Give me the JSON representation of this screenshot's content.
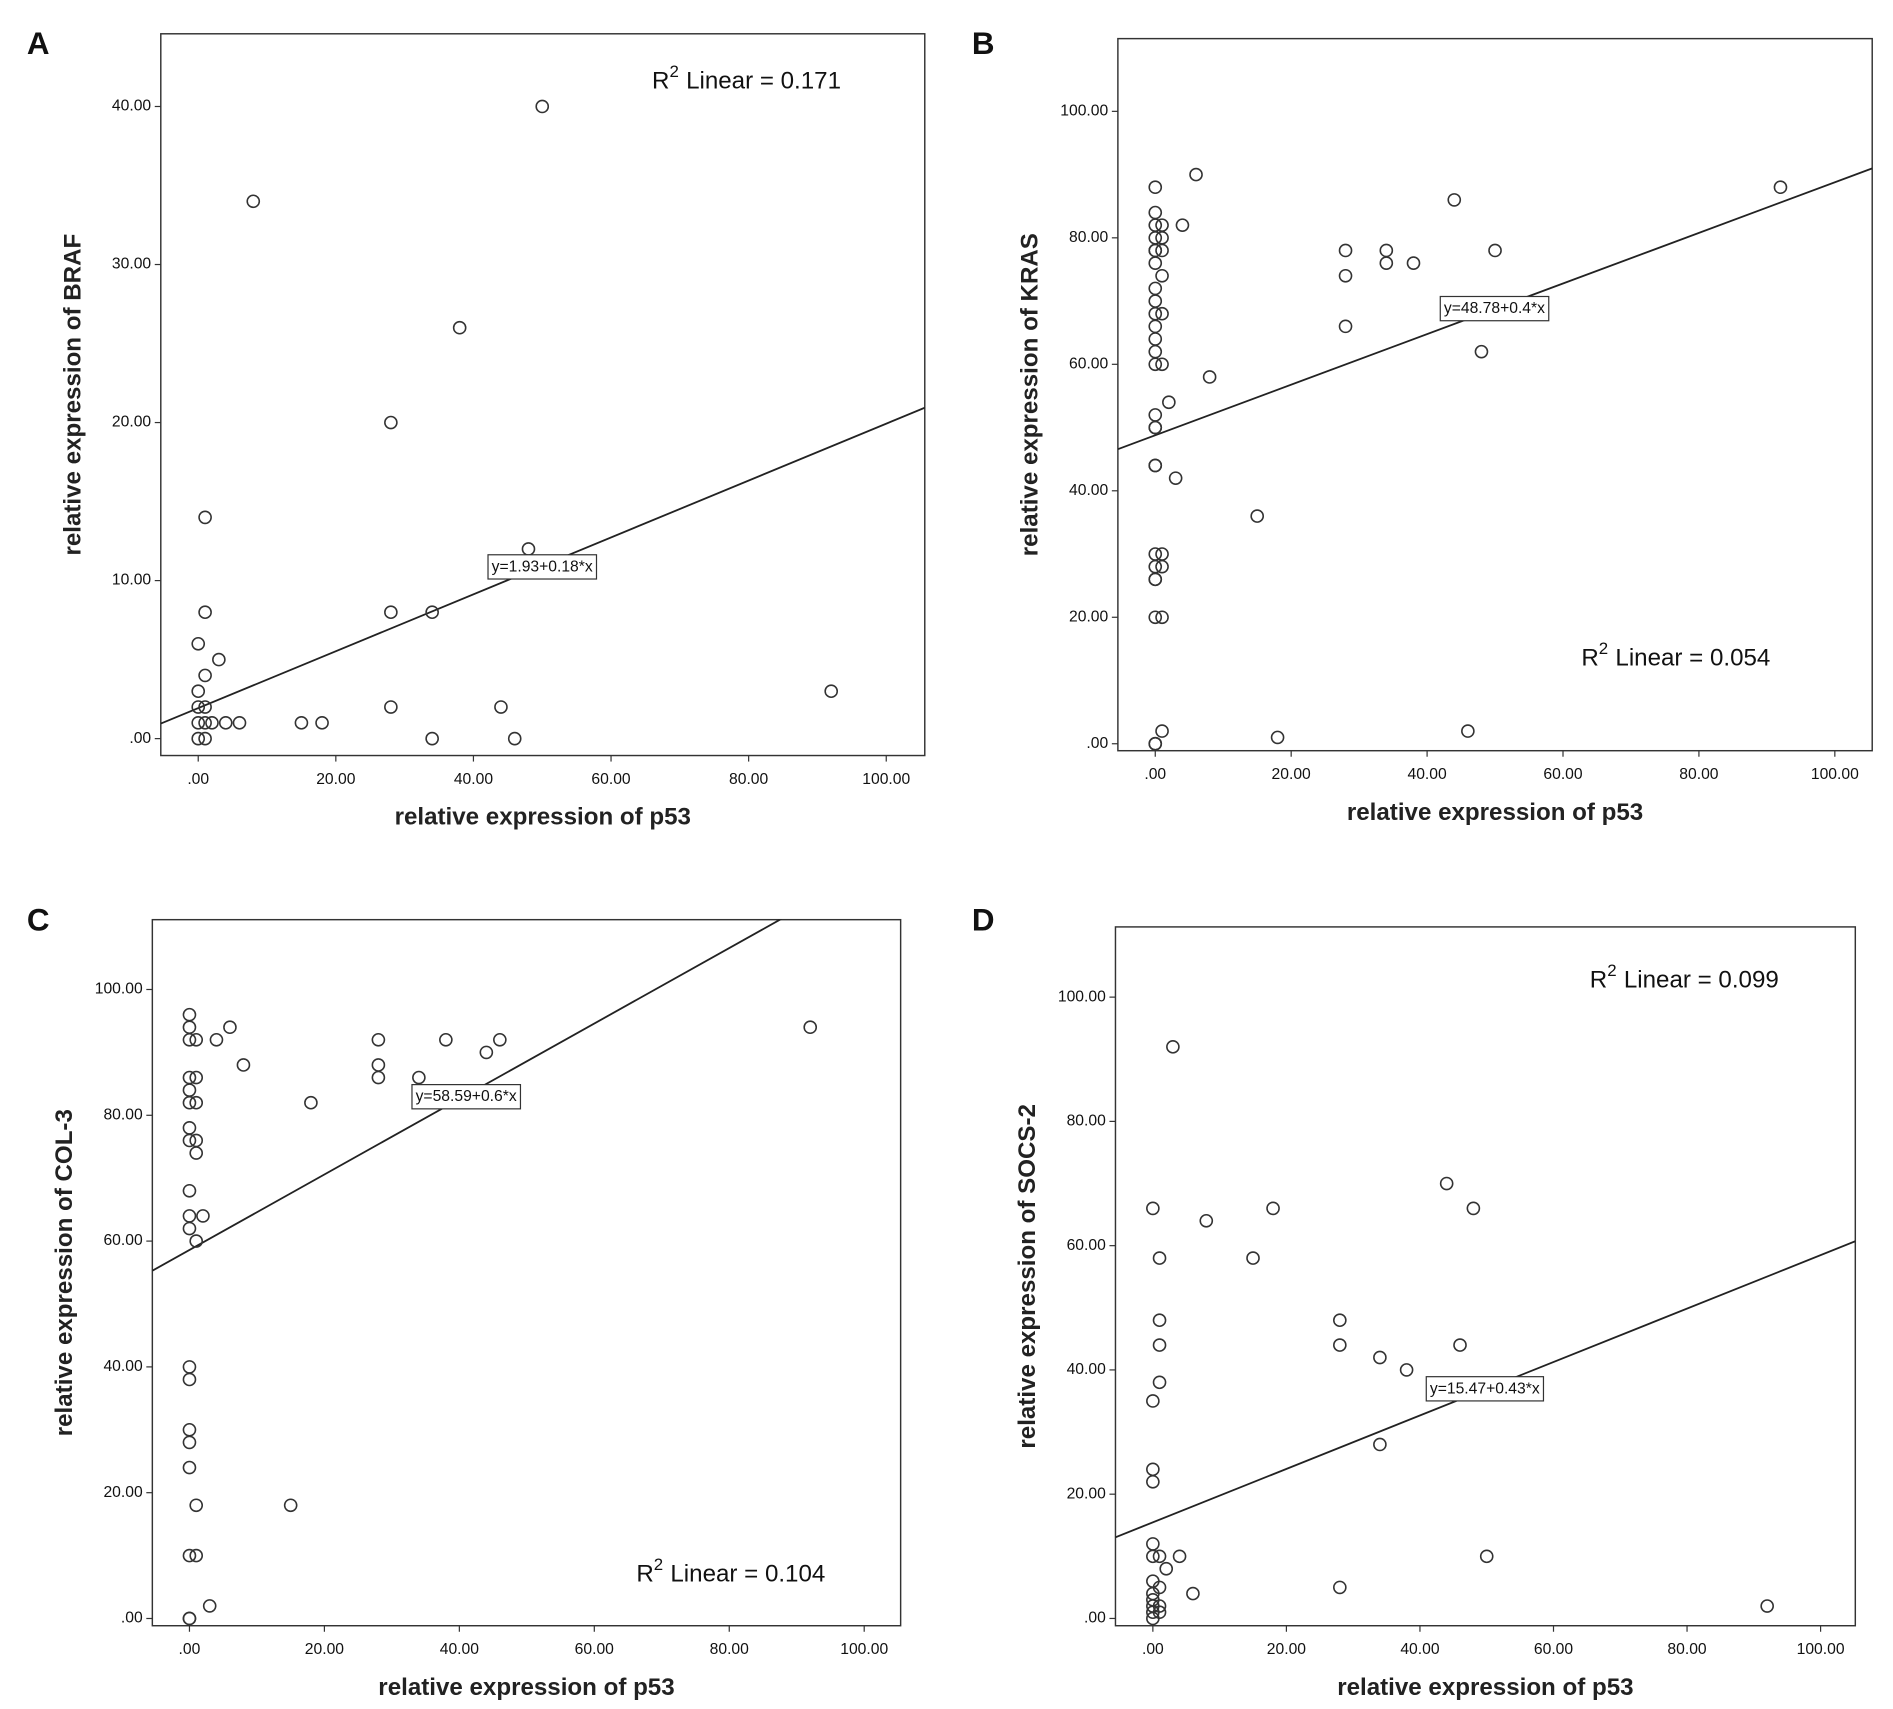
{
  "chart_data": [
    {
      "type": "scatter",
      "panel": "A",
      "x_label": "relative expression of p53",
      "y_label": "relative expression of BRAF",
      "xlim": [
        -5.44,
        105.6
      ],
      "ylim": [
        -1.07,
        44.6
      ],
      "xticks": [
        {
          "value": 0,
          "label": ".00"
        },
        {
          "value": 20,
          "label": "20.00"
        },
        {
          "value": 40,
          "label": "40.00"
        },
        {
          "value": 60,
          "label": "60.00"
        },
        {
          "value": 80,
          "label": "80.00"
        },
        {
          "value": 100,
          "label": "100.00"
        }
      ],
      "yticks": [
        {
          "value": 0,
          "label": ".00"
        },
        {
          "value": 10,
          "label": "10.00"
        },
        {
          "value": 20,
          "label": "20.00"
        },
        {
          "value": 30,
          "label": "30.00"
        },
        {
          "value": 40,
          "label": "40.00"
        }
      ],
      "x": [
        50,
        8,
        38,
        28,
        1,
        48,
        1,
        28,
        34,
        0,
        3,
        1,
        0,
        92,
        0,
        1,
        28,
        44,
        0,
        1,
        2,
        4,
        6,
        15,
        18,
        0,
        1,
        34,
        46
      ],
      "values": [
        40,
        34,
        26,
        20,
        14,
        12,
        8,
        8,
        8,
        6,
        5,
        4,
        3,
        3,
        2,
        2,
        2,
        2,
        1,
        1,
        1,
        1,
        1,
        1,
        1,
        0,
        0,
        0,
        0
      ],
      "fit": {
        "intercept": 1.93,
        "slope": 0.18
      },
      "fit_label": "y=1.93+0.18*x",
      "r2": {
        "symbol": "R",
        "power": "2",
        "text": "Linear = 0.171"
      }
    },
    {
      "type": "scatter",
      "panel": "B",
      "x_label": "relative expression of p53",
      "y_label": "relative expression of KRAS",
      "xlim": [
        -5.5,
        105.5
      ],
      "ylim": [
        -1.1,
        111.5
      ],
      "xticks": [
        {
          "value": 0,
          "label": ".00"
        },
        {
          "value": 20,
          "label": "20.00"
        },
        {
          "value": 40,
          "label": "40.00"
        },
        {
          "value": 60,
          "label": "60.00"
        },
        {
          "value": 80,
          "label": "80.00"
        },
        {
          "value": 100,
          "label": "100.00"
        }
      ],
      "yticks": [
        {
          "value": 0,
          "label": ".00"
        },
        {
          "value": 20,
          "label": "20.00"
        },
        {
          "value": 40,
          "label": "40.00"
        },
        {
          "value": 60,
          "label": "60.00"
        },
        {
          "value": 80,
          "label": "80.00"
        },
        {
          "value": 100,
          "label": "100.00"
        }
      ],
      "x": [
        0,
        0,
        0,
        0,
        0,
        0,
        0,
        0,
        0,
        0,
        0,
        0,
        0,
        0,
        0,
        0,
        0,
        0,
        0,
        0,
        0,
        0,
        0,
        0,
        0,
        0,
        1,
        1,
        1,
        1,
        1,
        1,
        1,
        1,
        1,
        1,
        6,
        4,
        2,
        3,
        8,
        15,
        18,
        28,
        28,
        28,
        34,
        34,
        38,
        44,
        48,
        50,
        46,
        92
      ],
      "values": [
        88,
        84,
        82,
        80,
        78,
        78,
        76,
        72,
        70,
        68,
        66,
        64,
        62,
        60,
        52,
        50,
        50,
        44,
        44,
        30,
        28,
        26,
        26,
        20,
        0,
        0,
        82,
        80,
        78,
        74,
        68,
        60,
        30,
        28,
        20,
        2,
        90,
        82,
        54,
        42,
        58,
        36,
        1,
        78,
        74,
        66,
        78,
        76,
        76,
        86,
        62,
        78,
        2,
        88
      ],
      "fit": {
        "intercept": 48.78,
        "slope": 0.4
      },
      "fit_label": "y=48.78+0.4*x",
      "r2": {
        "symbol": "R",
        "power": "2",
        "text": "Linear = 0.054"
      }
    },
    {
      "type": "scatter",
      "panel": "C",
      "x_label": "relative expression of p53",
      "y_label": "relative expression of COL-3",
      "xlim": [
        -5.5,
        105.4
      ],
      "ylim": [
        -1.15,
        111.1
      ],
      "xticks": [
        {
          "value": 0,
          "label": ".00"
        },
        {
          "value": 20,
          "label": "20.00"
        },
        {
          "value": 40,
          "label": "40.00"
        },
        {
          "value": 60,
          "label": "60.00"
        },
        {
          "value": 80,
          "label": "80.00"
        },
        {
          "value": 100,
          "label": "100.00"
        }
      ],
      "yticks": [
        {
          "value": 0,
          "label": ".00"
        },
        {
          "value": 20,
          "label": "20.00"
        },
        {
          "value": 40,
          "label": "40.00"
        },
        {
          "value": 60,
          "label": "60.00"
        },
        {
          "value": 80,
          "label": "80.00"
        },
        {
          "value": 100,
          "label": "100.00"
        }
      ],
      "x": [
        0,
        0,
        0,
        0,
        0,
        0,
        0,
        0,
        0,
        0,
        0,
        0,
        0,
        0,
        0,
        0,
        0,
        0,
        0,
        1,
        1,
        1,
        1,
        1,
        1,
        1,
        1,
        6,
        4,
        8,
        2,
        3,
        15,
        18,
        28,
        28,
        28,
        34,
        38,
        44,
        46,
        92
      ],
      "values": [
        96,
        94,
        92,
        86,
        84,
        82,
        78,
        76,
        68,
        64,
        62,
        40,
        38,
        30,
        28,
        24,
        10,
        0,
        0,
        92,
        86,
        82,
        76,
        74,
        60,
        18,
        10,
        94,
        92,
        88,
        64,
        2,
        18,
        82,
        92,
        88,
        86,
        86,
        92,
        90,
        92,
        94
      ],
      "fit": {
        "intercept": 58.59,
        "slope": 0.6
      },
      "fit_label": "y=58.59+0.6*x",
      "r2": {
        "symbol": "R",
        "power": "2",
        "text": "Linear = 0.104"
      }
    },
    {
      "type": "scatter",
      "panel": "D",
      "x_label": "relative expression of p53",
      "y_label": "relative expression of SOCS-2",
      "xlim": [
        -5.6,
        105.2
      ],
      "ylim": [
        -1.17,
        111.3
      ],
      "xticks": [
        {
          "value": 0,
          "label": ".00"
        },
        {
          "value": 20,
          "label": "20.00"
        },
        {
          "value": 40,
          "label": "40.00"
        },
        {
          "value": 60,
          "label": "60.00"
        },
        {
          "value": 80,
          "label": "80.00"
        },
        {
          "value": 100,
          "label": "100.00"
        }
      ],
      "yticks": [
        {
          "value": 0,
          "label": ".00"
        },
        {
          "value": 20,
          "label": "20.00"
        },
        {
          "value": 40,
          "label": "40.00"
        },
        {
          "value": 60,
          "label": "60.00"
        },
        {
          "value": 80,
          "label": "80.00"
        },
        {
          "value": 100,
          "label": "100.00"
        }
      ],
      "x": [
        0,
        0,
        0,
        0,
        0,
        0,
        0,
        0,
        0,
        0,
        0,
        0,
        1,
        1,
        1,
        1,
        1,
        1,
        1,
        1,
        3,
        8,
        18,
        15,
        28,
        28,
        34,
        38,
        44,
        48,
        46,
        34,
        28,
        50,
        92,
        4,
        2,
        6
      ],
      "values": [
        66,
        35,
        24,
        22,
        12,
        10,
        6,
        4,
        3,
        2,
        1,
        0,
        58,
        48,
        44,
        38,
        10,
        5,
        2,
        1,
        92,
        64,
        66,
        58,
        48,
        44,
        42,
        40,
        70,
        66,
        44,
        28,
        5,
        10,
        2,
        10,
        8,
        4
      ],
      "fit": {
        "intercept": 15.47,
        "slope": 0.43
      },
      "fit_label": "y=15.47+0.43*x",
      "r2": {
        "symbol": "R",
        "power": "2",
        "text": "Linear = 0.099"
      }
    }
  ]
}
